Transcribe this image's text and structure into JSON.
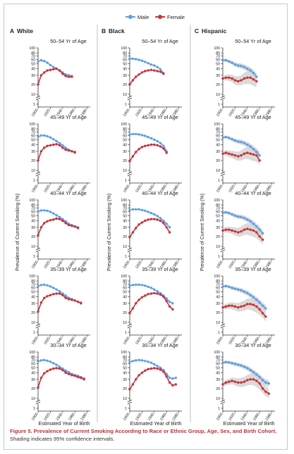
{
  "caption": {
    "label": "Figure 5.",
    "title": "Prevalence of Current Smoking According to Race or Ethnic Group, Age, Sex, and Birth Cohort.",
    "note": "Shading indicates 95% confidence intervals."
  },
  "legend": [
    {
      "name": "Male",
      "color": "#5aa0e6"
    },
    {
      "name": "Female",
      "color": "#c8323a"
    }
  ],
  "colors": {
    "male": "#5aa0e6",
    "female": "#c8323a",
    "ci": "#d2d2d2",
    "caption_red": "#b5343a",
    "divider": "#bfbfbf"
  },
  "y_axis_label": "Prevalence of Current Smoking (%)",
  "x_axis_label": "Estimated Year of Birth",
  "columns": [
    {
      "letter": "A",
      "name": "White"
    },
    {
      "letter": "B",
      "name": "Black"
    },
    {
      "letter": "C",
      "name": "Hispanic"
    }
  ],
  "chart_data": {
    "type": "line",
    "y_scale": "log",
    "y_ticks": [
      10,
      20,
      30,
      40,
      50,
      60,
      70,
      80,
      100
    ],
    "y_tick_labels": [
      "10",
      "20",
      "30",
      "40",
      "50",
      "60",
      "70",
      "80",
      "100"
    ],
    "y_break_label": "1",
    "x_ticks": [
      1900,
      1920,
      1940,
      1960,
      1980
    ],
    "x_tick_labels": [
      "1900",
      "1920",
      "1940",
      "1960",
      "1980"
    ],
    "xlim": [
      1900,
      1985
    ],
    "confidence_band": "Hispanic panels only",
    "panels": [
      {
        "column": 0,
        "age_group": "50–54 Yr of Age",
        "male": {
          "x": [
            1900,
            1905,
            1910,
            1915,
            1920,
            1925,
            1930,
            1935,
            1940,
            1945,
            1950,
            1955
          ],
          "y": [
            55,
            58,
            56,
            52,
            47,
            43,
            40,
            37,
            34,
            31,
            30,
            29
          ]
        },
        "female": {
          "x": [
            1900,
            1905,
            1910,
            1915,
            1920,
            1925,
            1930,
            1935,
            1940,
            1945,
            1950,
            1955
          ],
          "y": [
            20,
            30,
            34,
            37,
            38,
            39,
            40,
            37,
            32,
            29,
            28,
            28
          ]
        }
      },
      {
        "column": 0,
        "age_group": "45–49 Yr of Age",
        "male": {
          "x": [
            1900,
            1905,
            1910,
            1915,
            1920,
            1925,
            1930,
            1935,
            1940,
            1945,
            1950,
            1955,
            1960
          ],
          "y": [
            57,
            60,
            60,
            58,
            55,
            51,
            47,
            43,
            39,
            35,
            32,
            30,
            28
          ]
        },
        "female": {
          "x": [
            1900,
            1905,
            1910,
            1915,
            1920,
            1925,
            1930,
            1935,
            1940,
            1945,
            1950,
            1955,
            1960
          ],
          "y": [
            20,
            30,
            35,
            38,
            39,
            40,
            41,
            39,
            35,
            32,
            31,
            30,
            29
          ]
        }
      },
      {
        "column": 0,
        "age_group": "40–44 Yr of Age",
        "male": {
          "x": [
            1900,
            1905,
            1910,
            1915,
            1920,
            1925,
            1930,
            1935,
            1940,
            1945,
            1950,
            1955,
            1960,
            1965
          ],
          "y": [
            60,
            63,
            63,
            62,
            59,
            55,
            51,
            47,
            43,
            39,
            35,
            33,
            31,
            30
          ]
        },
        "female": {
          "x": [
            1900,
            1905,
            1910,
            1915,
            1920,
            1925,
            1930,
            1935,
            1940,
            1945,
            1950,
            1955,
            1960,
            1965
          ],
          "y": [
            21,
            30,
            36,
            39,
            41,
            42,
            44,
            43,
            40,
            36,
            33,
            32,
            31,
            29
          ]
        }
      },
      {
        "column": 0,
        "age_group": "35–39 Yr of Age",
        "male": {
          "x": [
            1900,
            1905,
            1910,
            1915,
            1920,
            1925,
            1930,
            1935,
            1940,
            1945,
            1950,
            1955,
            1960,
            1965,
            1970
          ],
          "y": [
            64,
            67,
            68,
            66,
            63,
            59,
            55,
            51,
            46,
            42,
            38,
            36,
            34,
            32,
            31
          ]
        },
        "female": {
          "x": [
            1900,
            1905,
            1910,
            1915,
            1920,
            1925,
            1930,
            1935,
            1940,
            1945,
            1950,
            1955,
            1960,
            1965,
            1970
          ],
          "y": [
            21,
            31,
            38,
            41,
            43,
            45,
            46,
            46,
            43,
            38,
            36,
            35,
            34,
            32,
            30
          ]
        }
      },
      {
        "column": 0,
        "age_group": "30–34 Yr of Age",
        "male": {
          "x": [
            1900,
            1905,
            1910,
            1915,
            1920,
            1925,
            1930,
            1935,
            1940,
            1945,
            1950,
            1955,
            1960,
            1965,
            1970,
            1975
          ],
          "y": [
            66,
            69,
            70,
            68,
            65,
            61,
            57,
            52,
            48,
            44,
            41,
            38,
            36,
            35,
            33,
            31
          ]
        },
        "female": {
          "x": [
            1900,
            1905,
            1910,
            1915,
            1920,
            1925,
            1930,
            1935,
            1940,
            1945,
            1950,
            1955,
            1960,
            1965,
            1970,
            1975
          ],
          "y": [
            21,
            32,
            39,
            43,
            46,
            48,
            49,
            48,
            45,
            40,
            38,
            36,
            35,
            33,
            32,
            30
          ]
        }
      },
      {
        "column": 1,
        "age_group": "50–54 Yr of Age",
        "male": {
          "x": [
            1900,
            1905,
            1910,
            1915,
            1920,
            1925,
            1930,
            1935,
            1940,
            1945,
            1950,
            1955
          ],
          "y": [
            62,
            62,
            61,
            59,
            57,
            54,
            51,
            48,
            46,
            43,
            39,
            33
          ]
        },
        "female": {
          "x": [
            1900,
            1905,
            1910,
            1915,
            1920,
            1925,
            1930,
            1935,
            1940,
            1945,
            1950,
            1955
          ],
          "y": [
            20,
            24,
            28,
            31,
            34,
            36,
            37,
            38,
            37,
            36,
            35,
            32
          ]
        }
      },
      {
        "column": 1,
        "age_group": "45–49 Yr of Age",
        "male": {
          "x": [
            1900,
            1905,
            1910,
            1915,
            1920,
            1925,
            1930,
            1935,
            1940,
            1945,
            1950,
            1955,
            1960
          ],
          "y": [
            63,
            64,
            64,
            63,
            61,
            59,
            56,
            53,
            50,
            47,
            43,
            38,
            30
          ]
        },
        "female": {
          "x": [
            1900,
            1905,
            1910,
            1915,
            1920,
            1925,
            1930,
            1935,
            1940,
            1945,
            1950,
            1955,
            1960
          ],
          "y": [
            19,
            24,
            29,
            33,
            36,
            38,
            39,
            40,
            40,
            39,
            37,
            34,
            28
          ]
        }
      },
      {
        "column": 1,
        "age_group": "40–44 Yr of Age",
        "male": {
          "x": [
            1900,
            1905,
            1910,
            1915,
            1920,
            1925,
            1930,
            1935,
            1940,
            1945,
            1950,
            1955,
            1960,
            1965
          ],
          "y": [
            64,
            66,
            66,
            66,
            64,
            62,
            59,
            56,
            53,
            49,
            45,
            40,
            35,
            30
          ]
        },
        "female": {
          "x": [
            1900,
            1905,
            1910,
            1915,
            1920,
            1925,
            1930,
            1935,
            1940,
            1945,
            1950,
            1955,
            1960,
            1965
          ],
          "y": [
            19,
            24,
            29,
            34,
            37,
            40,
            42,
            43,
            43,
            42,
            40,
            36,
            30,
            24
          ]
        }
      },
      {
        "column": 1,
        "age_group": "35–39 Yr of Age",
        "male": {
          "x": [
            1900,
            1905,
            1910,
            1915,
            1920,
            1925,
            1930,
            1935,
            1940,
            1945,
            1950,
            1955,
            1960,
            1965,
            1970
          ],
          "y": [
            65,
            67,
            68,
            68,
            67,
            65,
            62,
            59,
            55,
            51,
            47,
            42,
            37,
            32,
            30
          ]
        },
        "female": {
          "x": [
            1900,
            1905,
            1910,
            1915,
            1920,
            1925,
            1930,
            1935,
            1940,
            1945,
            1950,
            1955,
            1960,
            1965,
            1970
          ],
          "y": [
            19,
            24,
            30,
            35,
            39,
            42,
            45,
            46,
            47,
            46,
            44,
            40,
            33,
            26,
            23
          ]
        }
      },
      {
        "column": 1,
        "age_group": "30–34 Yr of Age",
        "male": {
          "x": [
            1900,
            1905,
            1910,
            1915,
            1920,
            1925,
            1930,
            1935,
            1940,
            1945,
            1950,
            1955,
            1960,
            1965,
            1970,
            1975
          ],
          "y": [
            64,
            67,
            69,
            70,
            69,
            67,
            65,
            62,
            58,
            54,
            50,
            45,
            38,
            32,
            31,
            32
          ]
        },
        "female": {
          "x": [
            1900,
            1905,
            1910,
            1915,
            1920,
            1925,
            1930,
            1935,
            1940,
            1945,
            1950,
            1955,
            1960,
            1965,
            1970,
            1975
          ],
          "y": [
            19,
            24,
            30,
            36,
            40,
            44,
            47,
            48,
            49,
            48,
            46,
            42,
            34,
            26,
            23,
            24
          ]
        }
      },
      {
        "column": 2,
        "age_group": "50–54 Yr of Age",
        "male": {
          "x": [
            1900,
            1905,
            1910,
            1915,
            1920,
            1925,
            1930,
            1935,
            1940,
            1945,
            1950,
            1955
          ],
          "y": [
            58,
            58,
            55,
            52,
            48,
            46,
            45,
            43,
            40,
            37,
            33,
            28
          ]
        },
        "female": {
          "x": [
            1900,
            1905,
            1910,
            1915,
            1920,
            1925,
            1930,
            1935,
            1940,
            1945,
            1950,
            1955
          ],
          "y": [
            26,
            27,
            27,
            26,
            24,
            23,
            24,
            26,
            27,
            27,
            25,
            23
          ]
        }
      },
      {
        "column": 2,
        "age_group": "45–49 Yr of Age",
        "male": {
          "x": [
            1900,
            1905,
            1910,
            1915,
            1920,
            1925,
            1930,
            1935,
            1940,
            1945,
            1950,
            1955,
            1960
          ],
          "y": [
            55,
            56,
            54,
            51,
            48,
            46,
            45,
            43,
            40,
            37,
            33,
            29,
            25
          ]
        },
        "female": {
          "x": [
            1900,
            1905,
            1910,
            1915,
            1920,
            1925,
            1930,
            1935,
            1940,
            1945,
            1950,
            1955,
            1960
          ],
          "y": [
            27,
            28,
            27,
            26,
            25,
            24,
            25,
            27,
            28,
            27,
            26,
            25,
            20
          ]
        }
      },
      {
        "column": 2,
        "age_group": "40–44 Yr of Age",
        "male": {
          "x": [
            1900,
            1905,
            1910,
            1915,
            1920,
            1925,
            1930,
            1935,
            1940,
            1945,
            1950,
            1955,
            1960,
            1965
          ],
          "y": [
            57,
            58,
            56,
            53,
            50,
            48,
            47,
            45,
            42,
            39,
            35,
            31,
            27,
            23
          ]
        },
        "female": {
          "x": [
            1900,
            1905,
            1910,
            1915,
            1920,
            1925,
            1930,
            1935,
            1940,
            1945,
            1950,
            1955,
            1960,
            1965
          ],
          "y": [
            26,
            27,
            27,
            26,
            25,
            24,
            25,
            27,
            28,
            27,
            26,
            24,
            20,
            16
          ]
        }
      },
      {
        "column": 2,
        "age_group": "35–39 Yr of Age",
        "male": {
          "x": [
            1900,
            1905,
            1910,
            1915,
            1920,
            1925,
            1930,
            1935,
            1940,
            1945,
            1950,
            1955,
            1960,
            1965,
            1970
          ],
          "y": [
            63,
            64,
            62,
            59,
            57,
            55,
            53,
            50,
            47,
            43,
            39,
            35,
            31,
            27,
            24
          ]
        },
        "female": {
          "x": [
            1900,
            1905,
            1910,
            1915,
            1920,
            1925,
            1930,
            1935,
            1940,
            1945,
            1950,
            1955,
            1960,
            1965,
            1970
          ],
          "y": [
            25,
            26,
            27,
            27,
            26,
            25,
            26,
            27,
            29,
            29,
            28,
            26,
            23,
            19,
            15
          ]
        }
      },
      {
        "column": 2,
        "age_group": "30–34 Yr of Age",
        "male": {
          "x": [
            1900,
            1905,
            1910,
            1915,
            1920,
            1925,
            1930,
            1935,
            1940,
            1945,
            1950,
            1955,
            1960,
            1965,
            1970,
            1975
          ],
          "y": [
            62,
            64,
            63,
            61,
            59,
            57,
            55,
            52,
            49,
            45,
            41,
            37,
            33,
            29,
            26,
            25
          ]
        },
        "female": {
          "x": [
            1900,
            1905,
            1910,
            1915,
            1920,
            1925,
            1930,
            1935,
            1940,
            1945,
            1950,
            1955,
            1960,
            1965,
            1970,
            1975
          ],
          "y": [
            24,
            26,
            27,
            28,
            27,
            26,
            26,
            27,
            29,
            30,
            30,
            28,
            25,
            20,
            16,
            14
          ]
        }
      }
    ]
  }
}
